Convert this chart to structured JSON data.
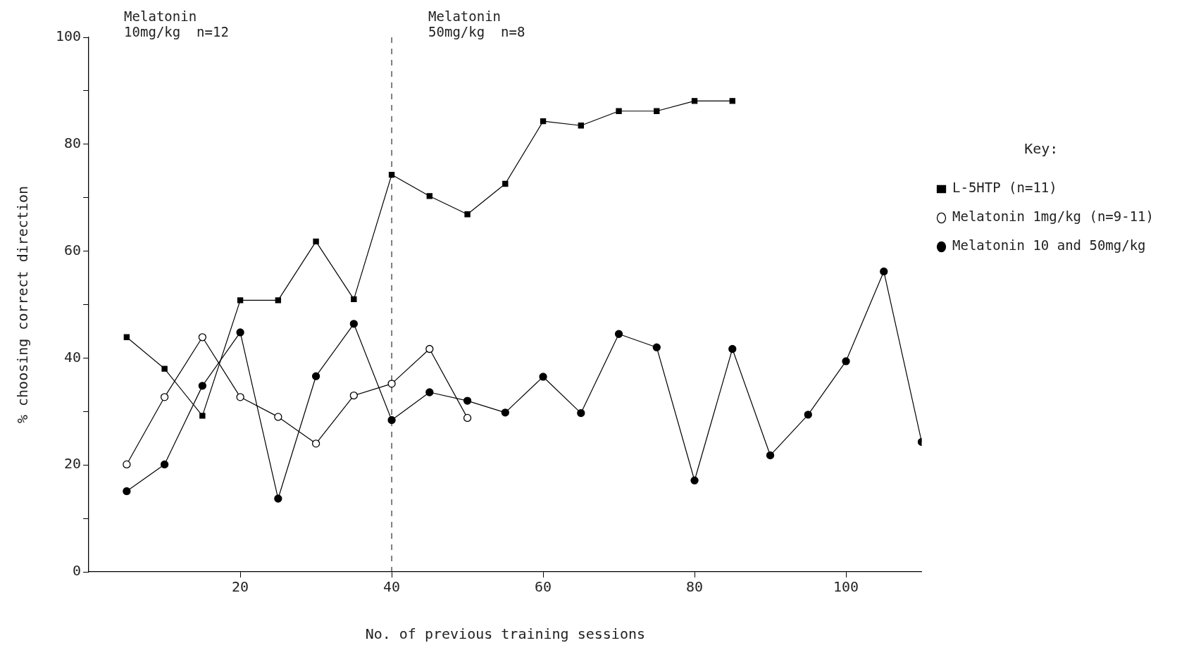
{
  "chart_data": {
    "type": "line",
    "xlabel": "No. of previous training sessions",
    "ylabel": "% choosing correct direction",
    "legend_title": "Key:",
    "legend": "right",
    "xlim": [
      0,
      110
    ],
    "xticks": [
      20,
      40,
      60,
      80,
      100
    ],
    "ylim": [
      0,
      100
    ],
    "yticks": [
      0,
      {
        "value": 10,
        "label": null
      },
      20,
      {
        "value": 30,
        "label": null
      },
      40,
      {
        "value": 50,
        "label": null
      },
      60,
      {
        "value": 70,
        "label": null
      },
      80,
      {
        "value": 90,
        "label": null
      },
      100
    ],
    "grid": false,
    "ref_lines": [
      {
        "axis": "x",
        "value": 40,
        "line_style": "dashed",
        "color": "#000000"
      }
    ],
    "annotations": [
      "Melatonin\n10mg/kg  n=12",
      "Melatonin\n50mg/kg  n=8"
    ],
    "series": [
      {
        "name": "L-5HTP (n=11)",
        "color": "#000000",
        "marker": "square",
        "x": [
          5,
          10,
          15,
          20,
          25,
          30,
          35,
          40,
          45,
          50,
          55,
          60,
          65,
          70,
          75,
          80,
          85
        ],
        "values": [
          43.9,
          38,
          29.2,
          50.8,
          50.8,
          61.8,
          51,
          74.3,
          70.3,
          66.9,
          72.6,
          84.3,
          83.5,
          86.2,
          86.2,
          88.1,
          88.1
        ]
      },
      {
        "name": "Melatonin 1mg/kg (n=9-11)",
        "color": "#000000",
        "marker": "circle",
        "x": [
          5,
          10,
          15,
          20,
          25,
          30,
          35,
          40,
          45,
          50
        ],
        "values": [
          20.1,
          32.7,
          43.9,
          32.7,
          29,
          24,
          33,
          35.2,
          41.7,
          28.8
        ]
      },
      {
        "name": "Melatonin 10 and 50mg/kg",
        "color": "#000000",
        "marker": "circle",
        "x": [
          5,
          10,
          15,
          20,
          25,
          30,
          35,
          40,
          45,
          50,
          55,
          60,
          65,
          70,
          75,
          80,
          85,
          90,
          95,
          100,
          105,
          110
        ],
        "values": [
          15.1,
          20.1,
          34.8,
          44.8,
          13.7,
          36.6,
          46.4,
          28.4,
          33.6,
          32,
          29.8,
          36.5,
          29.7,
          44.5,
          42,
          17.1,
          41.7,
          21.8,
          29.4,
          39.4,
          56.2,
          24.3
        ]
      }
    ]
  }
}
